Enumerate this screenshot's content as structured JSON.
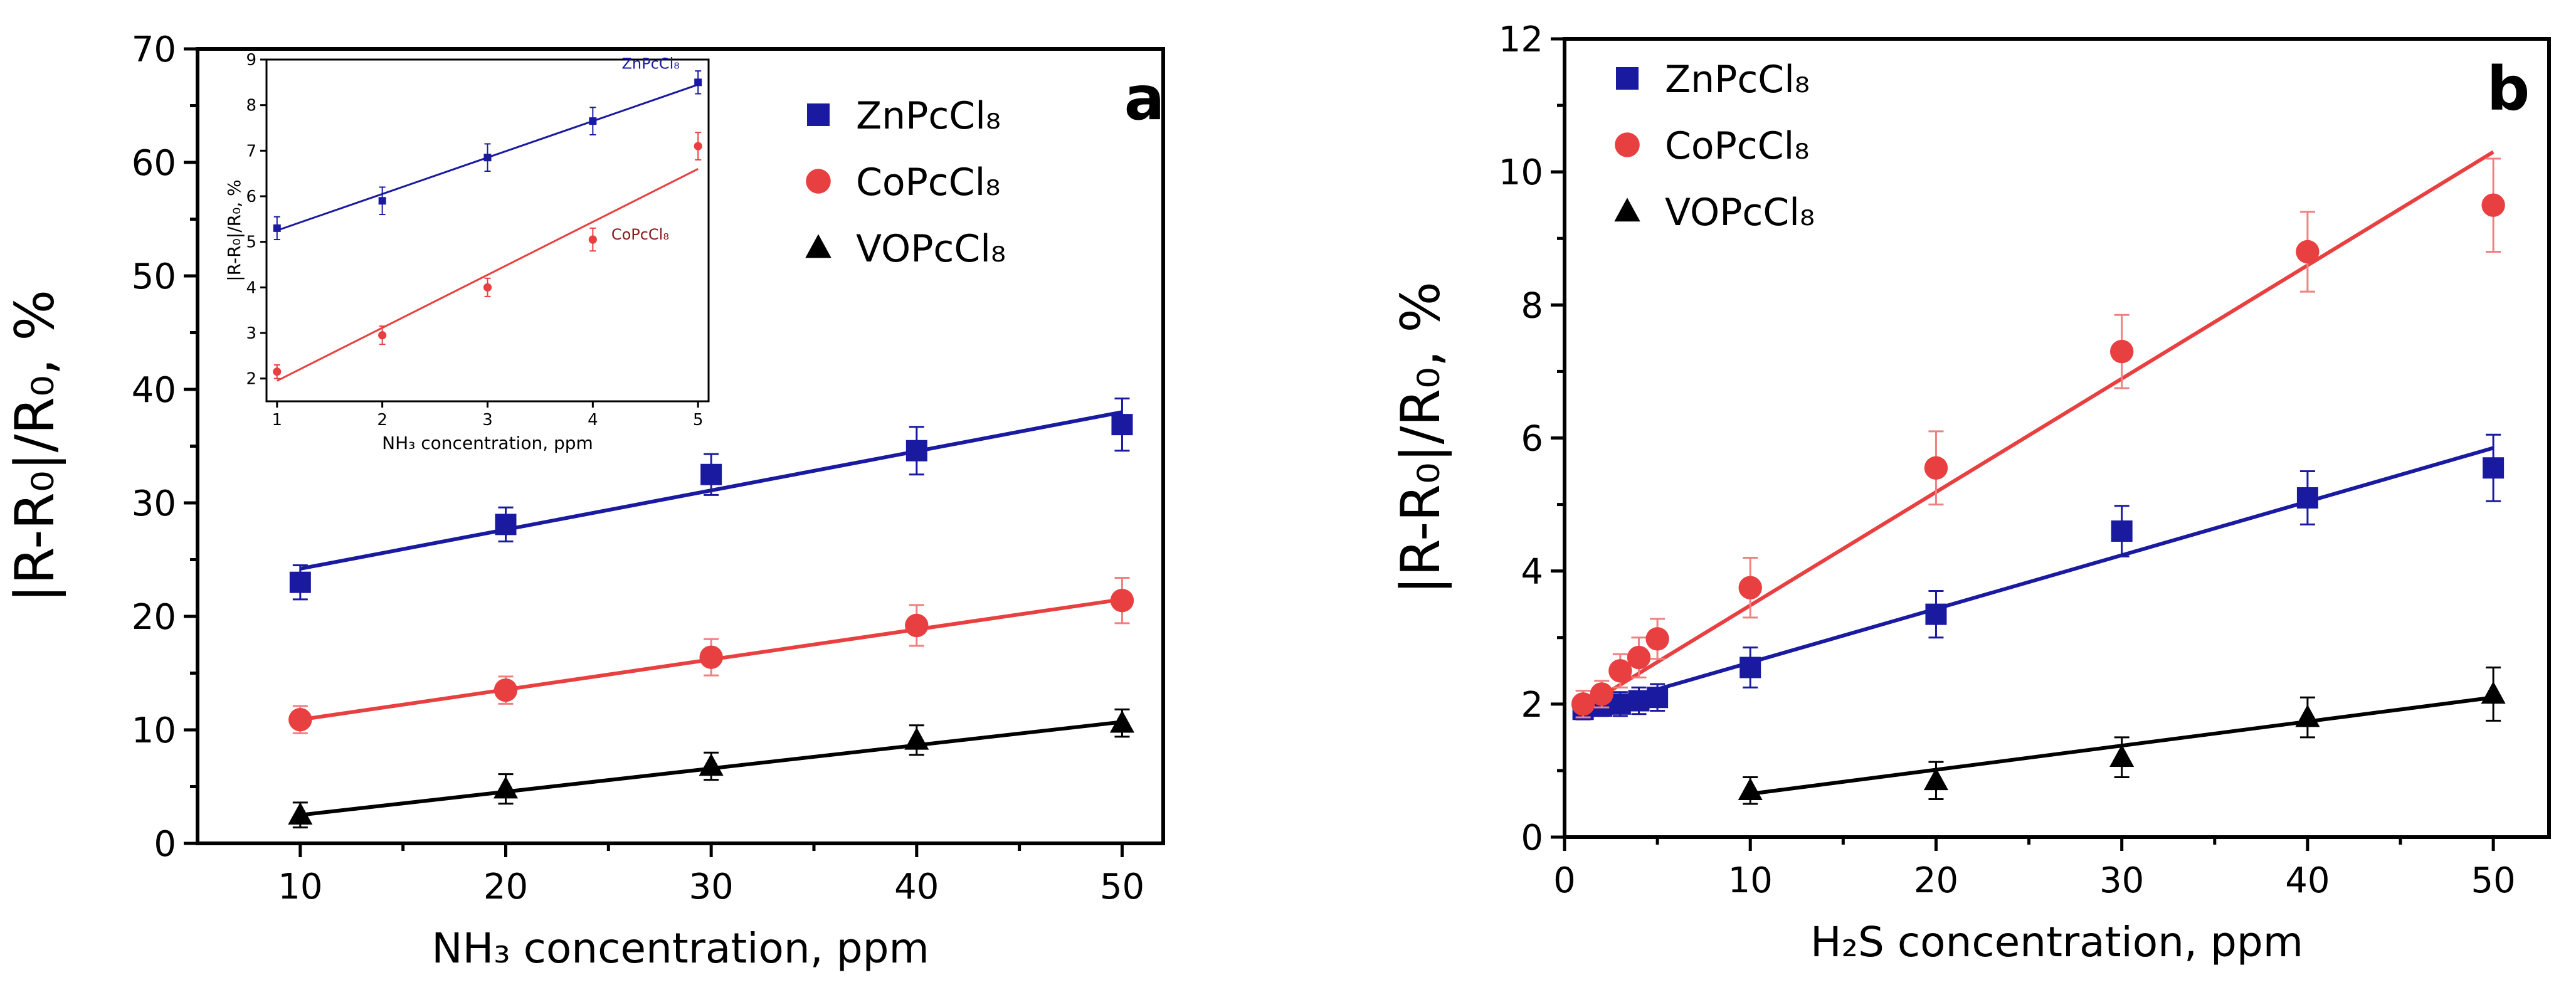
{
  "chart_data": [
    {
      "id": "a",
      "type": "scatter",
      "panel_label": "a",
      "xlabel": "NH₃ concentration, ppm",
      "ylabel": "|R-R₀|/R₀, %",
      "xlim": [
        5,
        52
      ],
      "ylim": [
        0,
        70
      ],
      "xticks": [
        10,
        20,
        30,
        40,
        50
      ],
      "yticks": [
        0,
        10,
        20,
        30,
        40,
        50,
        60,
        70
      ],
      "legend_position": "top-right",
      "series": [
        {
          "name": "ZnPcCl₈",
          "color": "#1a1aa0",
          "marker": "square",
          "x": [
            10,
            20,
            30,
            40,
            50
          ],
          "y": [
            23,
            28.1,
            32.5,
            34.6,
            36.9
          ],
          "err": [
            1.5,
            1.5,
            1.8,
            2.1,
            2.3
          ],
          "fit": [
            [
              10,
              24.2
            ],
            [
              50,
              38
            ]
          ]
        },
        {
          "name": "CoPcCl₈",
          "color": "#e84040",
          "marker": "circle",
          "x": [
            10,
            20,
            30,
            40,
            50
          ],
          "y": [
            10.9,
            13.5,
            16.4,
            19.2,
            21.4
          ],
          "err": [
            1.2,
            1.2,
            1.6,
            1.8,
            2.0
          ],
          "fit": [
            [
              10,
              10.9
            ],
            [
              50,
              21.5
            ]
          ]
        },
        {
          "name": "VOPcCl₈",
          "color": "#000000",
          "marker": "triangle",
          "x": [
            10,
            20,
            30,
            40,
            50
          ],
          "y": [
            2.5,
            4.8,
            6.8,
            9.1,
            10.6
          ],
          "err": [
            1.1,
            1.3,
            1.2,
            1.3,
            1.2
          ],
          "fit": [
            [
              10,
              2.5
            ],
            [
              50,
              10.7
            ]
          ]
        }
      ],
      "inset": {
        "xlabel": "NH₃ concentration, ppm",
        "ylabel": "|R-R₀|/R₀, %",
        "xlim": [
          0.9,
          5.1
        ],
        "ylim": [
          1.5,
          9
        ],
        "xticks": [
          1,
          2,
          3,
          4,
          5
        ],
        "yticks": [
          2,
          3,
          4,
          5,
          6,
          7,
          8,
          9
        ],
        "series": [
          {
            "name": "ZnPcCl₈",
            "color": "#1a1aa0",
            "marker": "square",
            "x": [
              1,
              2,
              3,
              4,
              5
            ],
            "y": [
              5.3,
              5.9,
              6.85,
              7.65,
              8.5
            ],
            "err": [
              0.25,
              0.3,
              0.3,
              0.3,
              0.25
            ],
            "fit": [
              [
                1,
                5.25
              ],
              [
                5,
                8.45
              ]
            ]
          },
          {
            "name": "CoPcCl₈",
            "color": "#e84040",
            "marker": "circle",
            "x": [
              1,
              2,
              3,
              4,
              5
            ],
            "y": [
              2.15,
              2.95,
              4.0,
              5.05,
              7.1
            ],
            "err": [
              0.15,
              0.2,
              0.2,
              0.25,
              0.3
            ],
            "fit": [
              [
                1,
                1.95
              ],
              [
                5,
                6.6
              ]
            ]
          }
        ],
        "annotations": [
          "ZnPcCl₈",
          "CoPcCl₈"
        ]
      }
    },
    {
      "id": "b",
      "type": "scatter",
      "panel_label": "b",
      "xlabel": "H₂S concentration, ppm",
      "ylabel": "|R-R₀|/R₀, %",
      "xlim": [
        0,
        53
      ],
      "ylim": [
        0,
        12
      ],
      "xticks": [
        0,
        10,
        20,
        30,
        40,
        50
      ],
      "yticks": [
        0,
        2,
        4,
        6,
        8,
        10,
        12
      ],
      "legend_position": "top-left",
      "series": [
        {
          "name": "ZnPcCl₈",
          "color": "#1a1aa0",
          "marker": "square",
          "x": [
            1,
            2,
            3,
            4,
            5,
            10,
            20,
            30,
            40,
            50
          ],
          "y": [
            1.92,
            1.97,
            2.0,
            2.05,
            2.1,
            2.55,
            3.35,
            4.6,
            5.1,
            5.55
          ],
          "err": [
            0.15,
            0.15,
            0.18,
            0.2,
            0.2,
            0.3,
            0.35,
            0.38,
            0.4,
            0.5
          ],
          "fit": [
            [
              1,
              1.9
            ],
            [
              50,
              5.85
            ]
          ]
        },
        {
          "name": "CoPcCl₈",
          "color": "#e84040",
          "marker": "circle",
          "x": [
            1,
            2,
            3,
            4,
            5,
            10,
            20,
            30,
            40,
            50
          ],
          "y": [
            2.0,
            2.15,
            2.5,
            2.7,
            2.98,
            3.75,
            5.55,
            7.3,
            8.8,
            9.5
          ],
          "err": [
            0.2,
            0.2,
            0.25,
            0.3,
            0.3,
            0.45,
            0.55,
            0.55,
            0.6,
            0.7
          ],
          "fit": [
            [
              1,
              1.95
            ],
            [
              50,
              10.3
            ]
          ]
        },
        {
          "name": "VOPcCl₈",
          "color": "#000000",
          "marker": "triangle",
          "x": [
            10,
            20,
            30,
            40,
            50
          ],
          "y": [
            0.7,
            0.85,
            1.2,
            1.8,
            2.15
          ],
          "err": [
            0.2,
            0.28,
            0.3,
            0.3,
            0.4
          ],
          "fit": [
            [
              10,
              0.65
            ],
            [
              50,
              2.1
            ]
          ]
        }
      ]
    }
  ]
}
